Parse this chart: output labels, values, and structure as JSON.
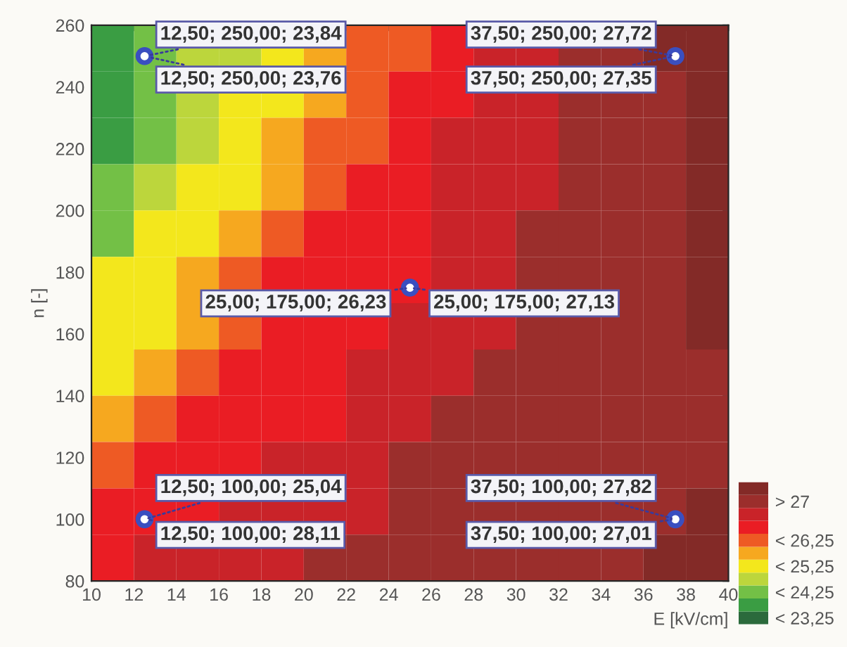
{
  "chart_data": {
    "type": "heatmap",
    "xlabel": "E [kV/cm]",
    "ylabel": "n [-]",
    "cells": [
      [
        23.5,
        24.0,
        24.5,
        24.5,
        25.0,
        25.5,
        26.0,
        26.0,
        26.5,
        27.0,
        27.0,
        27.5,
        27.5,
        28.0,
        28.0
      ],
      [
        23.5,
        24.0,
        24.5,
        25.0,
        25.0,
        25.5,
        26.0,
        26.5,
        26.5,
        27.0,
        27.0,
        27.5,
        27.5,
        27.5,
        28.0
      ],
      [
        23.5,
        24.0,
        24.5,
        25.0,
        25.5,
        26.0,
        26.0,
        26.5,
        27.0,
        27.0,
        27.0,
        27.5,
        27.5,
        27.5,
        28.0
      ],
      [
        24.0,
        24.5,
        25.0,
        25.0,
        25.5,
        26.0,
        26.5,
        26.5,
        27.0,
        27.0,
        27.0,
        27.5,
        27.5,
        27.5,
        28.0
      ],
      [
        24.0,
        25.0,
        25.0,
        25.5,
        26.0,
        26.5,
        26.5,
        26.5,
        27.0,
        27.0,
        27.5,
        27.5,
        27.5,
        27.5,
        28.0
      ],
      [
        25.0,
        25.0,
        25.5,
        26.0,
        26.5,
        26.5,
        26.5,
        26.5,
        27.0,
        27.0,
        27.5,
        27.5,
        27.5,
        27.5,
        28.0
      ],
      [
        25.0,
        25.0,
        25.5,
        26.0,
        26.5,
        26.5,
        26.5,
        27.0,
        27.0,
        27.0,
        27.5,
        27.5,
        27.5,
        27.5,
        28.0
      ],
      [
        25.0,
        25.5,
        26.0,
        26.5,
        26.5,
        26.5,
        27.0,
        27.0,
        27.0,
        27.5,
        27.5,
        27.5,
        27.5,
        27.5,
        27.5
      ],
      [
        25.5,
        26.0,
        26.5,
        26.5,
        26.5,
        26.5,
        27.0,
        27.0,
        27.5,
        27.5,
        27.5,
        27.5,
        27.5,
        27.5,
        27.5
      ],
      [
        26.0,
        26.5,
        26.5,
        26.5,
        27.0,
        27.0,
        27.0,
        27.5,
        27.5,
        27.5,
        27.5,
        27.5,
        27.5,
        27.5,
        27.5
      ],
      [
        26.5,
        26.5,
        26.5,
        27.0,
        27.0,
        27.0,
        27.0,
        27.5,
        27.5,
        27.5,
        27.5,
        27.5,
        27.5,
        27.5,
        28.0
      ],
      [
        26.5,
        27.0,
        27.0,
        27.0,
        27.0,
        27.5,
        27.5,
        27.5,
        27.5,
        27.5,
        27.5,
        27.5,
        27.5,
        28.0,
        28.0
      ]
    ],
    "colors": [
      "#2b6a3c",
      "#3a9d43",
      "#73c046",
      "#bcd63c",
      "#f3e71c",
      "#f6a81f",
      "#ee5a24",
      "#ea1d24",
      "#c92329",
      "#9b2e2c",
      "#832a27"
    ],
    "clim": [
      22.75,
      28.25
    ],
    "cticks": [
      {
        "value": 27.5,
        "label": "> 27"
      },
      {
        "value": 26.0,
        "label": "< 26,25"
      },
      {
        "value": 25.0,
        "label": "< 25,25"
      },
      {
        "value": 24.0,
        "label": "< 24,25"
      },
      {
        "value": 23.0,
        "label": "< 23,25"
      }
    ],
    "xlim": [
      10,
      40
    ],
    "xticks": [
      10,
      12,
      14,
      16,
      18,
      20,
      22,
      24,
      26,
      28,
      30,
      32,
      34,
      36,
      38,
      40
    ],
    "ylim": [
      80,
      260
    ],
    "yticks": [
      80,
      100,
      120,
      140,
      160,
      180,
      200,
      220,
      240,
      260
    ],
    "series": [
      {
        "type": "scatter",
        "color": "#3a4fc0",
        "x": [
          12.5,
          37.5,
          25,
          12.5,
          37.5
        ],
        "values": [
          250,
          250,
          175,
          100,
          100
        ]
      }
    ],
    "marker": "circle",
    "grid": false,
    "legend": false,
    "annotations": [
      {
        "text": "12,50; 250,00; 23,84",
        "x": 12.5,
        "y": 250
      },
      {
        "text": "12,50; 250,00; 23,76",
        "x": 12.5,
        "y": 250
      },
      {
        "text": "37,50; 250,00; 27,72",
        "x": 37.5,
        "y": 250
      },
      {
        "text": "37,50; 250,00; 27,35",
        "x": 37.5,
        "y": 250
      },
      {
        "text": "25,00; 175,00; 26,23",
        "x": 25,
        "y": 175
      },
      {
        "text": "25,00; 175,00; 27,13",
        "x": 25,
        "y": 175
      },
      {
        "text": "12,50; 100,00; 25,04",
        "x": 12.5,
        "y": 100
      },
      {
        "text": "12,50; 100,00; 28,11",
        "x": 12.5,
        "y": 100
      },
      {
        "text": "37,50; 100,00; 27,82",
        "x": 37.5,
        "y": 100
      },
      {
        "text": "37,50; 100,00; 27,01",
        "x": 37.5,
        "y": 100
      }
    ]
  }
}
